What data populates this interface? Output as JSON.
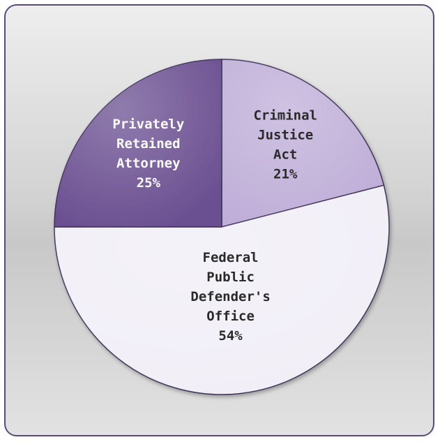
{
  "chart_data": {
    "type": "pie",
    "title": "",
    "slices": [
      {
        "lines": [
          "Criminal",
          "Justice",
          "Act",
          "21%"
        ],
        "value": 21,
        "color": "#bfaed8",
        "text_color": "#2a2a2a"
      },
      {
        "lines": [
          "Federal",
          "Public",
          "Defender's",
          "Office",
          "54%"
        ],
        "value": 54,
        "color": "#f1eef7",
        "text_color": "#2a2a2a"
      },
      {
        "lines": [
          "Privately",
          "Retained",
          "Attorney",
          "25%"
        ],
        "value": 25,
        "color": "#6b5091",
        "text_color": "#ffffff"
      }
    ]
  },
  "colors": {
    "frame_border": "#5a4a78",
    "slice_stroke": "#3e3258"
  }
}
